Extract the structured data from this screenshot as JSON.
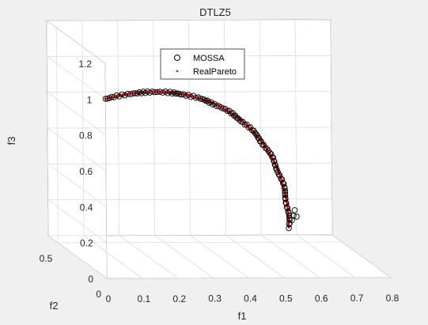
{
  "chart_data": {
    "type": "scatter",
    "title": "DTLZ5",
    "xlabel": "f1",
    "ylabel": "f2",
    "zlabel": "f3",
    "xlim": [
      0,
      0.8
    ],
    "ylim": [
      0,
      0.6
    ],
    "zlim": [
      0,
      1.2
    ],
    "x_ticks": [
      "0",
      "0.1",
      "0.2",
      "0.3",
      "0.4",
      "0.5",
      "0.6",
      "0.7",
      "0.8"
    ],
    "y_ticks": [
      "0",
      "0.5"
    ],
    "z_ticks": [
      "0",
      "0.2",
      "0.4",
      "0.6",
      "0.8",
      "1",
      "1.2"
    ],
    "grid": true,
    "legend_position": "top-center",
    "series": [
      {
        "name": "MOSSA",
        "marker": "open-circle",
        "color": "#000000",
        "theta_range_deg": [
          0,
          90
        ],
        "n_points": 120
      },
      {
        "name": "RealPareto",
        "marker": "dot",
        "color": "#ff0000",
        "theta_range_deg": [
          0,
          90
        ],
        "n_points": 150
      }
    ]
  }
}
